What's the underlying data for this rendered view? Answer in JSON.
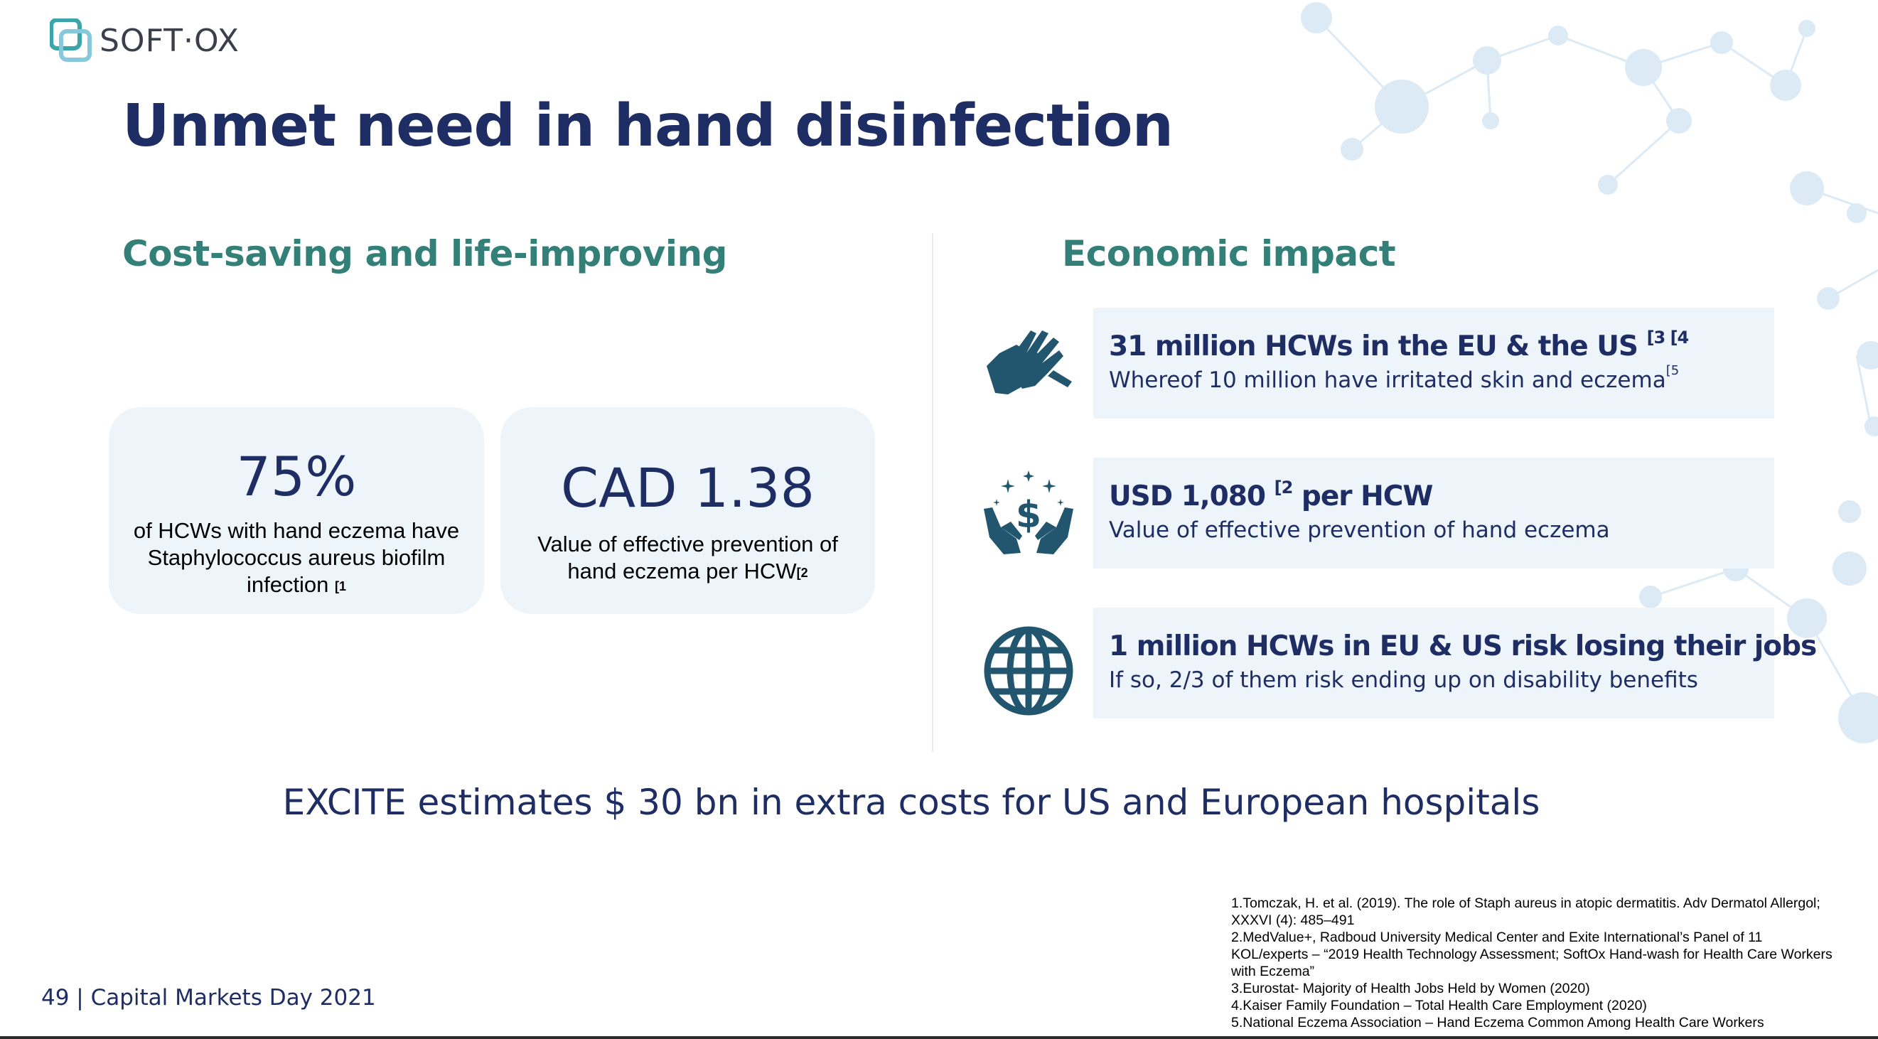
{
  "brand": {
    "logo_text": "SOFT·OX"
  },
  "title": "Unmet need in hand disinfection",
  "left_section": {
    "heading": "Cost-saving and life-improving",
    "cards": [
      {
        "value": "75%",
        "desc_lines": [
          "of HCWs with hand eczema have",
          "Staphylococcus aureus biofilm"
        ],
        "desc_last": "infection ",
        "ref": "[1"
      },
      {
        "value": "CAD 1.38",
        "desc_lines": [
          "Value of effective prevention of"
        ],
        "desc_last": "hand eczema per HCW",
        "ref": "[2"
      }
    ]
  },
  "right_section": {
    "heading": "Economic impact",
    "items": [
      {
        "icon": "clapping-hands-icon",
        "title": "31 million HCWs in the EU & the US ",
        "title_ref": "[3 [4",
        "title_after": "",
        "subtitle": "Whereof 10 million have irritated skin and eczema",
        "subtitle_ref": "[5"
      },
      {
        "icon": "money-hands-icon",
        "title": "USD 1,080 ",
        "title_ref": "[2",
        "title_after": " per HCW",
        "subtitle": "Value of effective prevention of hand eczema",
        "subtitle_ref": ""
      },
      {
        "icon": "globe-icon",
        "title": "1  million HCWs in EU & US risk losing their jobs",
        "title_ref": "",
        "title_after": "",
        "subtitle": "If so, 2/3 of them risk ending up on disability benefits",
        "subtitle_ref": ""
      }
    ]
  },
  "excite_statement": "EXCITE estimates $ 30 bn in extra costs for US and European hospitals",
  "references": [
    "1.Tomczak, H. et al. (2019). The role of Staph aureus in atopic dermatitis. Adv Dermatol Allergol;",
    "XXXVI (4): 485–491",
    "2.MedValue+, Radboud University Medical Center and Exite International’s Panel of 11",
    "KOL/experts – “2019 Health Technology Assessment; SoftOx Hand-wash for Health Care Workers",
    "with Eczema”",
    "3.Eurostat- Majority of Health Jobs Held by Women (2020)",
    "4.Kaiser Family Foundation  –  Total Health Care Employment (2020)",
    "5.National Eczema Association –  Hand Eczema  Common Among Health Care Workers"
  ],
  "footer": "49 | Capital Markets Day 2021",
  "colors": {
    "navy": "#1e2d63",
    "teal": "#338079",
    "card_bg": "#edf5fb",
    "icon": "#22566f"
  }
}
